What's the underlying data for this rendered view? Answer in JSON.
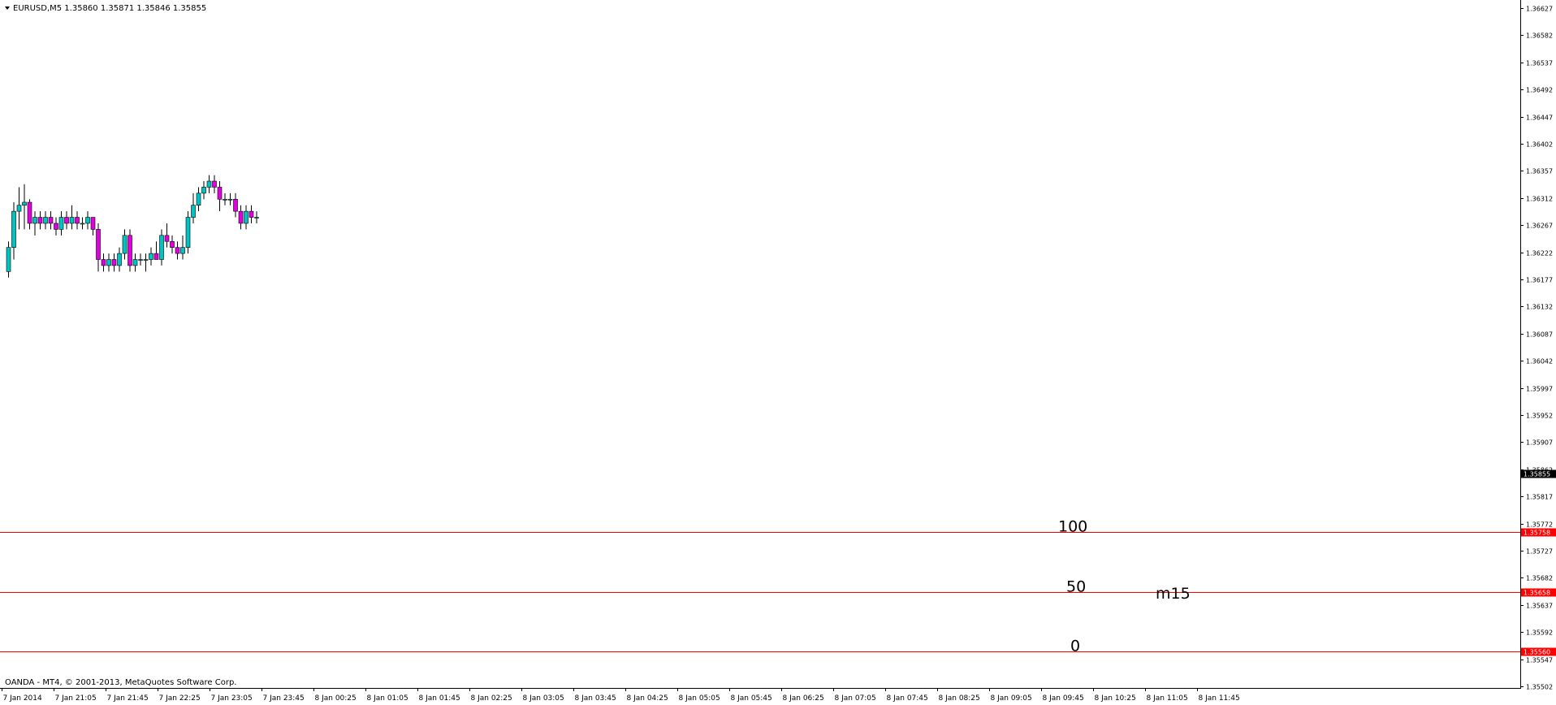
{
  "window": {
    "title": "EURUSD,M5  1.35860 1.35871 1.35846 1.35855",
    "menu_icon": "triangle-down-icon",
    "copyright": "OANDA - MT4, © 2001-2013, MetaQuotes Software Corp."
  },
  "colors": {
    "background": "#ffffff",
    "axis": "#000000",
    "bull": "#00c4c4",
    "bear": "#e000e0",
    "hline": "#ff0000",
    "price_tag": "#000000"
  },
  "chart_data": {
    "type": "candlestick",
    "symbol": "EURUSD",
    "timeframe": "M5",
    "ohlc_header": {
      "open": 1.3586,
      "high": 1.35871,
      "low": 1.35846,
      "close": 1.35855
    },
    "ylim": [
      1.35502,
      1.36627
    ],
    "y_ticks": [
      "1.36627",
      "1.36582",
      "1.36537",
      "1.36492",
      "1.36447",
      "1.36402",
      "1.36357",
      "1.36312",
      "1.36267",
      "1.36222",
      "1.36177",
      "1.36132",
      "1.36087",
      "1.36042",
      "1.35997",
      "1.35952",
      "1.35907",
      "1.35862",
      "1.35817",
      "1.35772",
      "1.35727",
      "1.35682",
      "1.35637",
      "1.35592",
      "1.35547",
      "1.35502"
    ],
    "x_ticks": [
      "7 Jan 2014",
      "7 Jan 21:05",
      "7 Jan 21:45",
      "7 Jan 22:25",
      "7 Jan 23:05",
      "7 Jan 23:45",
      "8 Jan 00:25",
      "8 Jan 01:05",
      "8 Jan 01:45",
      "8 Jan 02:25",
      "8 Jan 03:05",
      "8 Jan 03:45",
      "8 Jan 04:25",
      "8 Jan 05:05",
      "8 Jan 05:45",
      "8 Jan 06:25",
      "8 Jan 07:05",
      "8 Jan 07:45",
      "8 Jan 08:25",
      "8 Jan 09:05",
      "8 Jan 09:45",
      "8 Jan 10:25",
      "8 Jan 11:05",
      "8 Jan 11:45"
    ],
    "current_price": "1.35855",
    "hlines": [
      {
        "price": 1.35758,
        "tag": "1.35758",
        "label": "100"
      },
      {
        "price": 1.35658,
        "tag": "1.35658",
        "label": "50"
      },
      {
        "price": 1.3556,
        "tag": "1.35560",
        "label": "0"
      }
    ],
    "annotation": "m15",
    "grid": false,
    "candles": [
      [
        1.3619,
        1.3624,
        1.3618,
        1.3623
      ],
      [
        1.3623,
        1.36305,
        1.3621,
        1.3629
      ],
      [
        1.3629,
        1.3633,
        1.3626,
        1.363
      ],
      [
        1.363,
        1.36335,
        1.3626,
        1.36305
      ],
      [
        1.36305,
        1.3631,
        1.3626,
        1.3627
      ],
      [
        1.3627,
        1.3629,
        1.3625,
        1.3628
      ],
      [
        1.3628,
        1.3629,
        1.3626,
        1.3627
      ],
      [
        1.3627,
        1.3629,
        1.3626,
        1.3628
      ],
      [
        1.3628,
        1.3629,
        1.3626,
        1.3627
      ],
      [
        1.3627,
        1.3628,
        1.3625,
        1.3626
      ],
      [
        1.3626,
        1.3629,
        1.3625,
        1.3628
      ],
      [
        1.3628,
        1.3629,
        1.3626,
        1.3627
      ],
      [
        1.3627,
        1.363,
        1.3626,
        1.3628
      ],
      [
        1.3628,
        1.3629,
        1.3626,
        1.3627
      ],
      [
        1.3627,
        1.3628,
        1.3626,
        1.3627
      ],
      [
        1.3627,
        1.3629,
        1.3626,
        1.3628
      ],
      [
        1.3628,
        1.3628,
        1.3625,
        1.3626
      ],
      [
        1.3626,
        1.3627,
        1.3619,
        1.3621
      ],
      [
        1.3621,
        1.3622,
        1.3619,
        1.362
      ],
      [
        1.362,
        1.3622,
        1.3619,
        1.3621
      ],
      [
        1.3621,
        1.3622,
        1.3619,
        1.362
      ],
      [
        1.362,
        1.3623,
        1.3619,
        1.3622
      ],
      [
        1.3622,
        1.3626,
        1.3621,
        1.3625
      ],
      [
        1.3625,
        1.3626,
        1.3619,
        1.362
      ],
      [
        1.362,
        1.3622,
        1.3619,
        1.3621
      ],
      [
        1.3621,
        1.3622,
        1.362,
        1.3621
      ],
      [
        1.3621,
        1.3622,
        1.3619,
        1.3621
      ],
      [
        1.3621,
        1.3623,
        1.362,
        1.3622
      ],
      [
        1.3622,
        1.3624,
        1.3621,
        1.3621
      ],
      [
        1.3621,
        1.3626,
        1.362,
        1.3625
      ],
      [
        1.3625,
        1.3627,
        1.3623,
        1.3624
      ],
      [
        1.3624,
        1.3625,
        1.3622,
        1.3623
      ],
      [
        1.3623,
        1.3624,
        1.3621,
        1.3622
      ],
      [
        1.3622,
        1.3625,
        1.3621,
        1.3623
      ],
      [
        1.3623,
        1.3629,
        1.3622,
        1.3628
      ],
      [
        1.3628,
        1.3632,
        1.3627,
        1.363
      ],
      [
        1.363,
        1.3633,
        1.3629,
        1.3632
      ],
      [
        1.3632,
        1.3634,
        1.3631,
        1.3633
      ],
      [
        1.3633,
        1.3635,
        1.3632,
        1.3634
      ],
      [
        1.3634,
        1.3635,
        1.3632,
        1.3633
      ],
      [
        1.3633,
        1.3634,
        1.3629,
        1.3631
      ],
      [
        1.3631,
        1.3632,
        1.363,
        1.3631
      ],
      [
        1.3631,
        1.3632,
        1.363,
        1.3631
      ],
      [
        1.3631,
        1.3632,
        1.3628,
        1.3629
      ],
      [
        1.3629,
        1.363,
        1.3626,
        1.3627
      ],
      [
        1.3627,
        1.363,
        1.3626,
        1.3629
      ],
      [
        1.3629,
        1.363,
        1.3627,
        1.3628
      ],
      [
        1.3628,
        1.3629,
        1.3627,
        1.3628
      ]
    ]
  }
}
